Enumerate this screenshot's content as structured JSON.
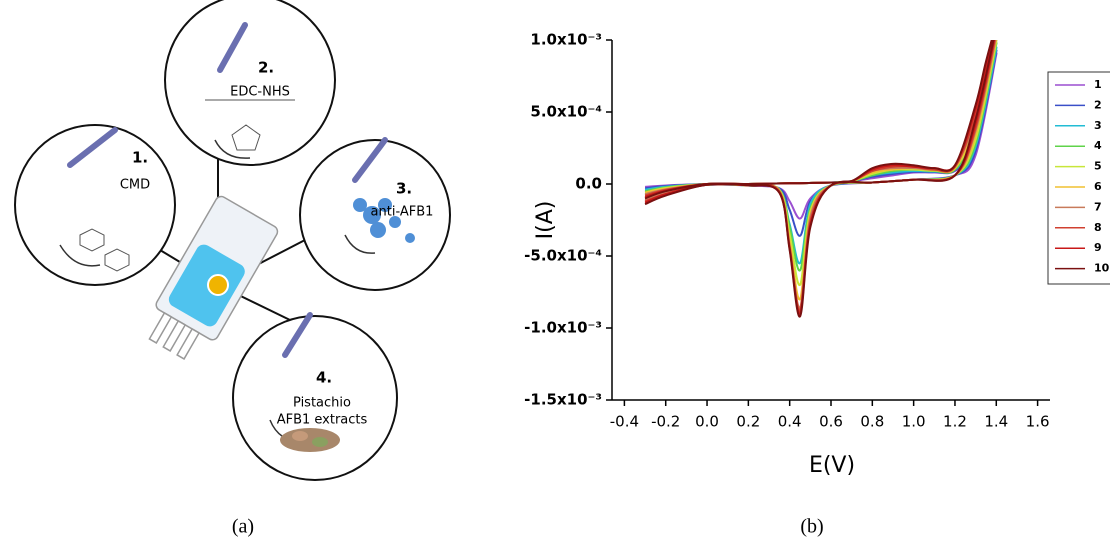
{
  "panel_a": {
    "steps": [
      {
        "number": "1.",
        "lines": [
          "CMD"
        ]
      },
      {
        "number": "2.",
        "lines": [
          "EDC-NHS"
        ]
      },
      {
        "number": "3.",
        "lines": [
          "anti-AFB1"
        ]
      },
      {
        "number": "4.",
        "lines": [
          "Pistachio",
          "AFB1 extracts"
        ]
      }
    ],
    "caption": "(a)"
  },
  "chart_data": {
    "type": "line",
    "caption": "(b)",
    "x_label": "E(V)",
    "y_label": "I(A)",
    "xlim": [
      -0.46,
      1.66
    ],
    "ylim": [
      -0.0015,
      0.001
    ],
    "xticks": [
      -0.4,
      -0.2,
      {
        "value": 0,
        "label": "0.0"
      },
      0.2,
      0.4,
      0.6,
      0.8,
      {
        "value": 1,
        "label": "1.0"
      },
      1.2,
      1.4,
      1.6
    ],
    "yticks": [
      {
        "value": -0.0015,
        "label": "-1.5x10⁻³"
      },
      {
        "value": -0.001,
        "label": "-1.0x10⁻³"
      },
      {
        "value": -0.0005,
        "label": "-5.0x10⁻⁴"
      },
      {
        "value": 0,
        "label": "0.0"
      },
      {
        "value": 0.0005,
        "label": "5.0x10⁻⁴"
      },
      {
        "value": 0.001,
        "label": "1.0x10⁻³"
      }
    ],
    "legend": "right",
    "x": [
      -0.3,
      -0.2,
      0,
      0.2,
      0.4,
      0.6,
      0.7,
      0.8,
      0.9,
      1.0,
      1.1,
      1.2,
      1.3,
      1.35,
      1.4,
      1.3,
      1.2,
      1.0,
      0.8,
      0.6,
      0.5,
      0.45,
      0.4,
      0.35,
      0.2,
      0,
      -0.2,
      -0.3
    ],
    "series": [
      {
        "name": "1",
        "color": "#9b4fd1",
        "values": [
          -2e-05,
          -1e-05,
          0,
          0,
          5e-06,
          1e-05,
          2e-05,
          4e-05,
          6e-05,
          8e-05,
          8e-05,
          9e-05,
          0.00025,
          0.00055,
          0.0009,
          0.0002,
          6e-05,
          3e-05,
          1e-05,
          -1e-05,
          -0.0001,
          -0.00024,
          -0.00012,
          -3e-05,
          -1e-05,
          -5e-06,
          -2e-05,
          -4e-05
        ]
      },
      {
        "name": "2",
        "color": "#3a4fc8",
        "values": [
          -3e-05,
          -1.4e-05,
          0,
          0,
          5e-06,
          1e-05,
          2e-05,
          5e-05,
          7e-05,
          8.5e-05,
          8.3e-05,
          9.4e-05,
          0.00028,
          0.00058,
          0.00092,
          0.00023,
          6e-05,
          3e-05,
          1e-05,
          -1e-05,
          -0.00012,
          -0.00036,
          -0.00018,
          -3e-05,
          -1e-05,
          -5e-06,
          -3e-05,
          -5e-05
        ]
      },
      {
        "name": "3",
        "color": "#22bcd4",
        "values": [
          -4e-05,
          -1.9e-05,
          0,
          0,
          5e-06,
          1e-05,
          2e-05,
          6e-05,
          8e-05,
          9e-05,
          8.7e-05,
          0.0001,
          0.00032,
          0.00062,
          0.00094,
          0.00026,
          6e-05,
          3e-05,
          1e-05,
          -1e-05,
          -0.00014,
          -0.00055,
          -0.00028,
          -4e-05,
          -1e-05,
          -5e-06,
          -3e-05,
          -6e-05
        ]
      },
      {
        "name": "4",
        "color": "#5fd34a",
        "values": [
          -5e-05,
          -2.3e-05,
          0,
          0,
          5e-06,
          1e-05,
          2e-05,
          6e-05,
          9e-05,
          0.0001,
          9e-05,
          0.0001,
          0.00035,
          0.00065,
          0.00097,
          0.00028,
          6e-05,
          3e-05,
          1e-05,
          -1e-05,
          -0.00017,
          -0.0006,
          -0.0003,
          -4e-05,
          -1e-05,
          -5e-06,
          -4e-05,
          -7e-05
        ]
      },
      {
        "name": "5",
        "color": "#c8e63a",
        "values": [
          -6e-05,
          -2.8e-05,
          0,
          0,
          5e-06,
          1e-05,
          2e-05,
          7e-05,
          0.0001,
          0.0001,
          9.3e-05,
          0.00011,
          0.00038,
          0.00068,
          0.00099,
          0.00031,
          6e-05,
          3e-05,
          1e-05,
          -1e-05,
          -0.00019,
          -0.0007,
          -0.00035,
          -4e-05,
          -1e-05,
          -5e-06,
          -5e-05,
          -8e-05
        ]
      },
      {
        "name": "6",
        "color": "#f0c030",
        "values": [
          -6e-05,
          -3.2e-05,
          0,
          0,
          5e-06,
          1e-05,
          2e-05,
          8e-05,
          0.0001,
          0.00011,
          9.7e-05,
          0.00011,
          0.00042,
          0.00072,
          0.00101,
          0.00034,
          6e-05,
          3e-05,
          1e-05,
          -1e-05,
          -0.00021,
          -0.0008,
          -0.0004,
          -5e-05,
          -1e-05,
          -5e-06,
          -5e-05,
          -0.0001
        ]
      },
      {
        "name": "7",
        "color": "#c87a5a",
        "values": [
          -7e-05,
          -3.7e-05,
          0,
          0,
          5e-06,
          1e-05,
          2e-05,
          9e-05,
          0.00011,
          0.00011,
          0.0001,
          0.00012,
          0.00045,
          0.00075,
          0.00103,
          0.00037,
          6e-05,
          3e-05,
          1e-05,
          -1e-05,
          -0.00023,
          -0.00086,
          -0.00043,
          -5e-05,
          -1e-05,
          -5e-06,
          -6e-05,
          -0.00011
        ]
      },
      {
        "name": "8",
        "color": "#d04030",
        "values": [
          -8e-05,
          -4.1e-05,
          0,
          0,
          5e-06,
          1e-05,
          2e-05,
          9e-05,
          0.00012,
          0.00012,
          0.0001,
          0.00012,
          0.00048,
          0.00078,
          0.00106,
          0.00039,
          6e-05,
          3e-05,
          1e-05,
          -1e-05,
          -0.00026,
          -0.00088,
          -0.00044,
          -5e-05,
          -1e-05,
          -5e-06,
          -7e-05,
          -0.00012
        ]
      },
      {
        "name": "9",
        "color": "#c81818",
        "values": [
          -9e-05,
          -4.6e-05,
          0,
          0,
          5e-06,
          1e-05,
          2e-05,
          0.0001,
          0.00013,
          0.00012,
          0.00011,
          0.00013,
          0.00052,
          0.00082,
          0.00108,
          0.00042,
          6e-05,
          3e-05,
          1e-05,
          -1e-05,
          -0.00028,
          -0.0009,
          -0.00045,
          -6e-05,
          -1e-05,
          -5e-06,
          -7e-05,
          -0.00013
        ]
      },
      {
        "name": "10",
        "color": "#7a1010",
        "values": [
          -0.0001,
          -5e-05,
          0,
          0,
          5e-06,
          1e-05,
          2e-05,
          0.00011,
          0.00014,
          0.00013,
          0.00011,
          0.00013,
          0.00055,
          0.00085,
          0.0011,
          0.00045,
          6e-05,
          3e-05,
          1e-05,
          -1e-05,
          -0.0003,
          -0.00092,
          -0.00046,
          -6e-05,
          -1e-05,
          -5e-06,
          -8e-05,
          -0.00014
        ]
      }
    ]
  }
}
